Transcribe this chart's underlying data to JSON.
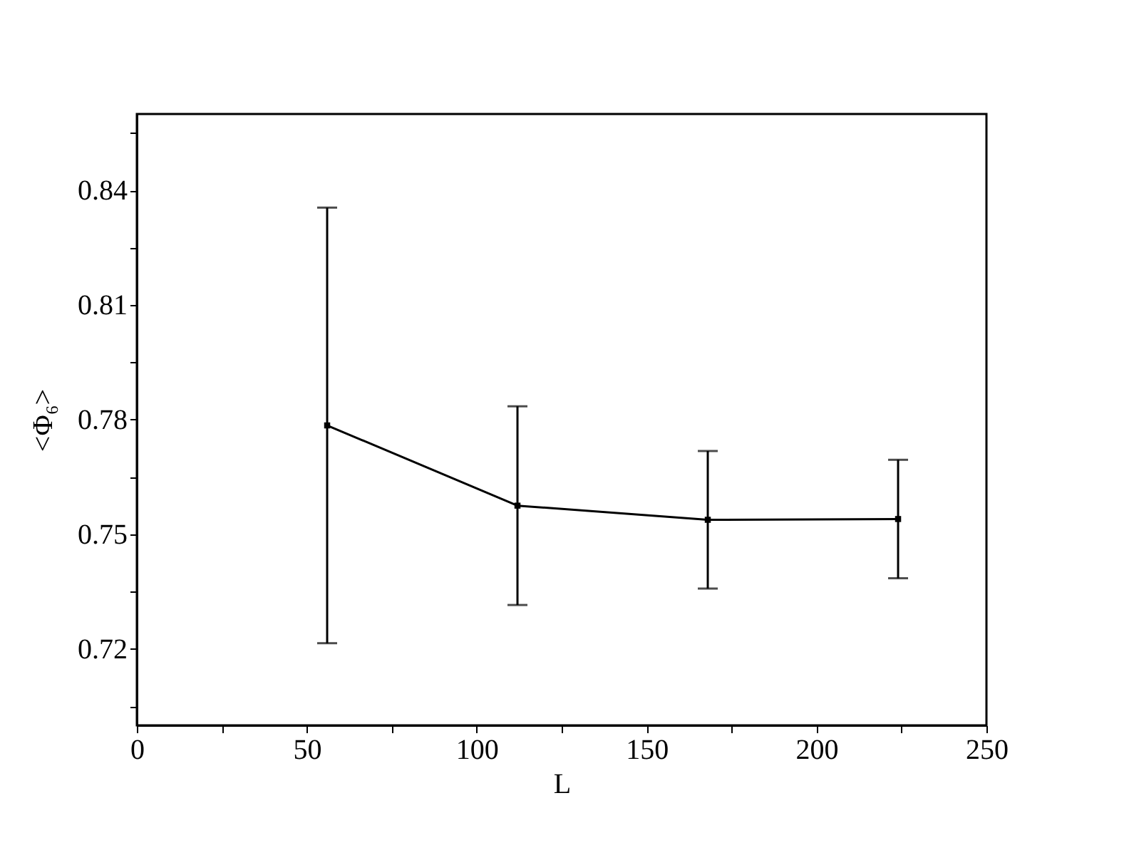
{
  "chart_data": {
    "type": "line",
    "xlabel": "L",
    "ylabel": "<Φ₆>",
    "x": [
      56,
      112,
      168,
      224
    ],
    "series": [
      {
        "color": "#000000",
        "values": [
          0.7785,
          0.7575,
          0.7538,
          0.754
        ],
        "errors": [
          0.057,
          0.026,
          0.018,
          0.0155
        ]
      }
    ],
    "xlim": [
      0,
      250
    ],
    "xticks": [
      0,
      {
        "value": 25,
        "label": null
      },
      50,
      {
        "value": 75,
        "label": null
      },
      100,
      {
        "value": 125,
        "label": null
      },
      150,
      {
        "value": 175,
        "label": null
      },
      200,
      {
        "value": 225,
        "label": null
      },
      250
    ],
    "ylim": [
      0.7,
      0.86
    ],
    "yticks": [
      {
        "value": 0.705,
        "label": null
      },
      0.72,
      {
        "value": 0.735,
        "label": null
      },
      0.75,
      {
        "value": 0.765,
        "label": null
      },
      0.78,
      {
        "value": 0.795,
        "label": null
      },
      0.81,
      {
        "value": 0.825,
        "label": null
      },
      0.84,
      {
        "value": 0.855,
        "label": null
      }
    ],
    "marker": "square",
    "line_style": "solid",
    "grid": false
  }
}
